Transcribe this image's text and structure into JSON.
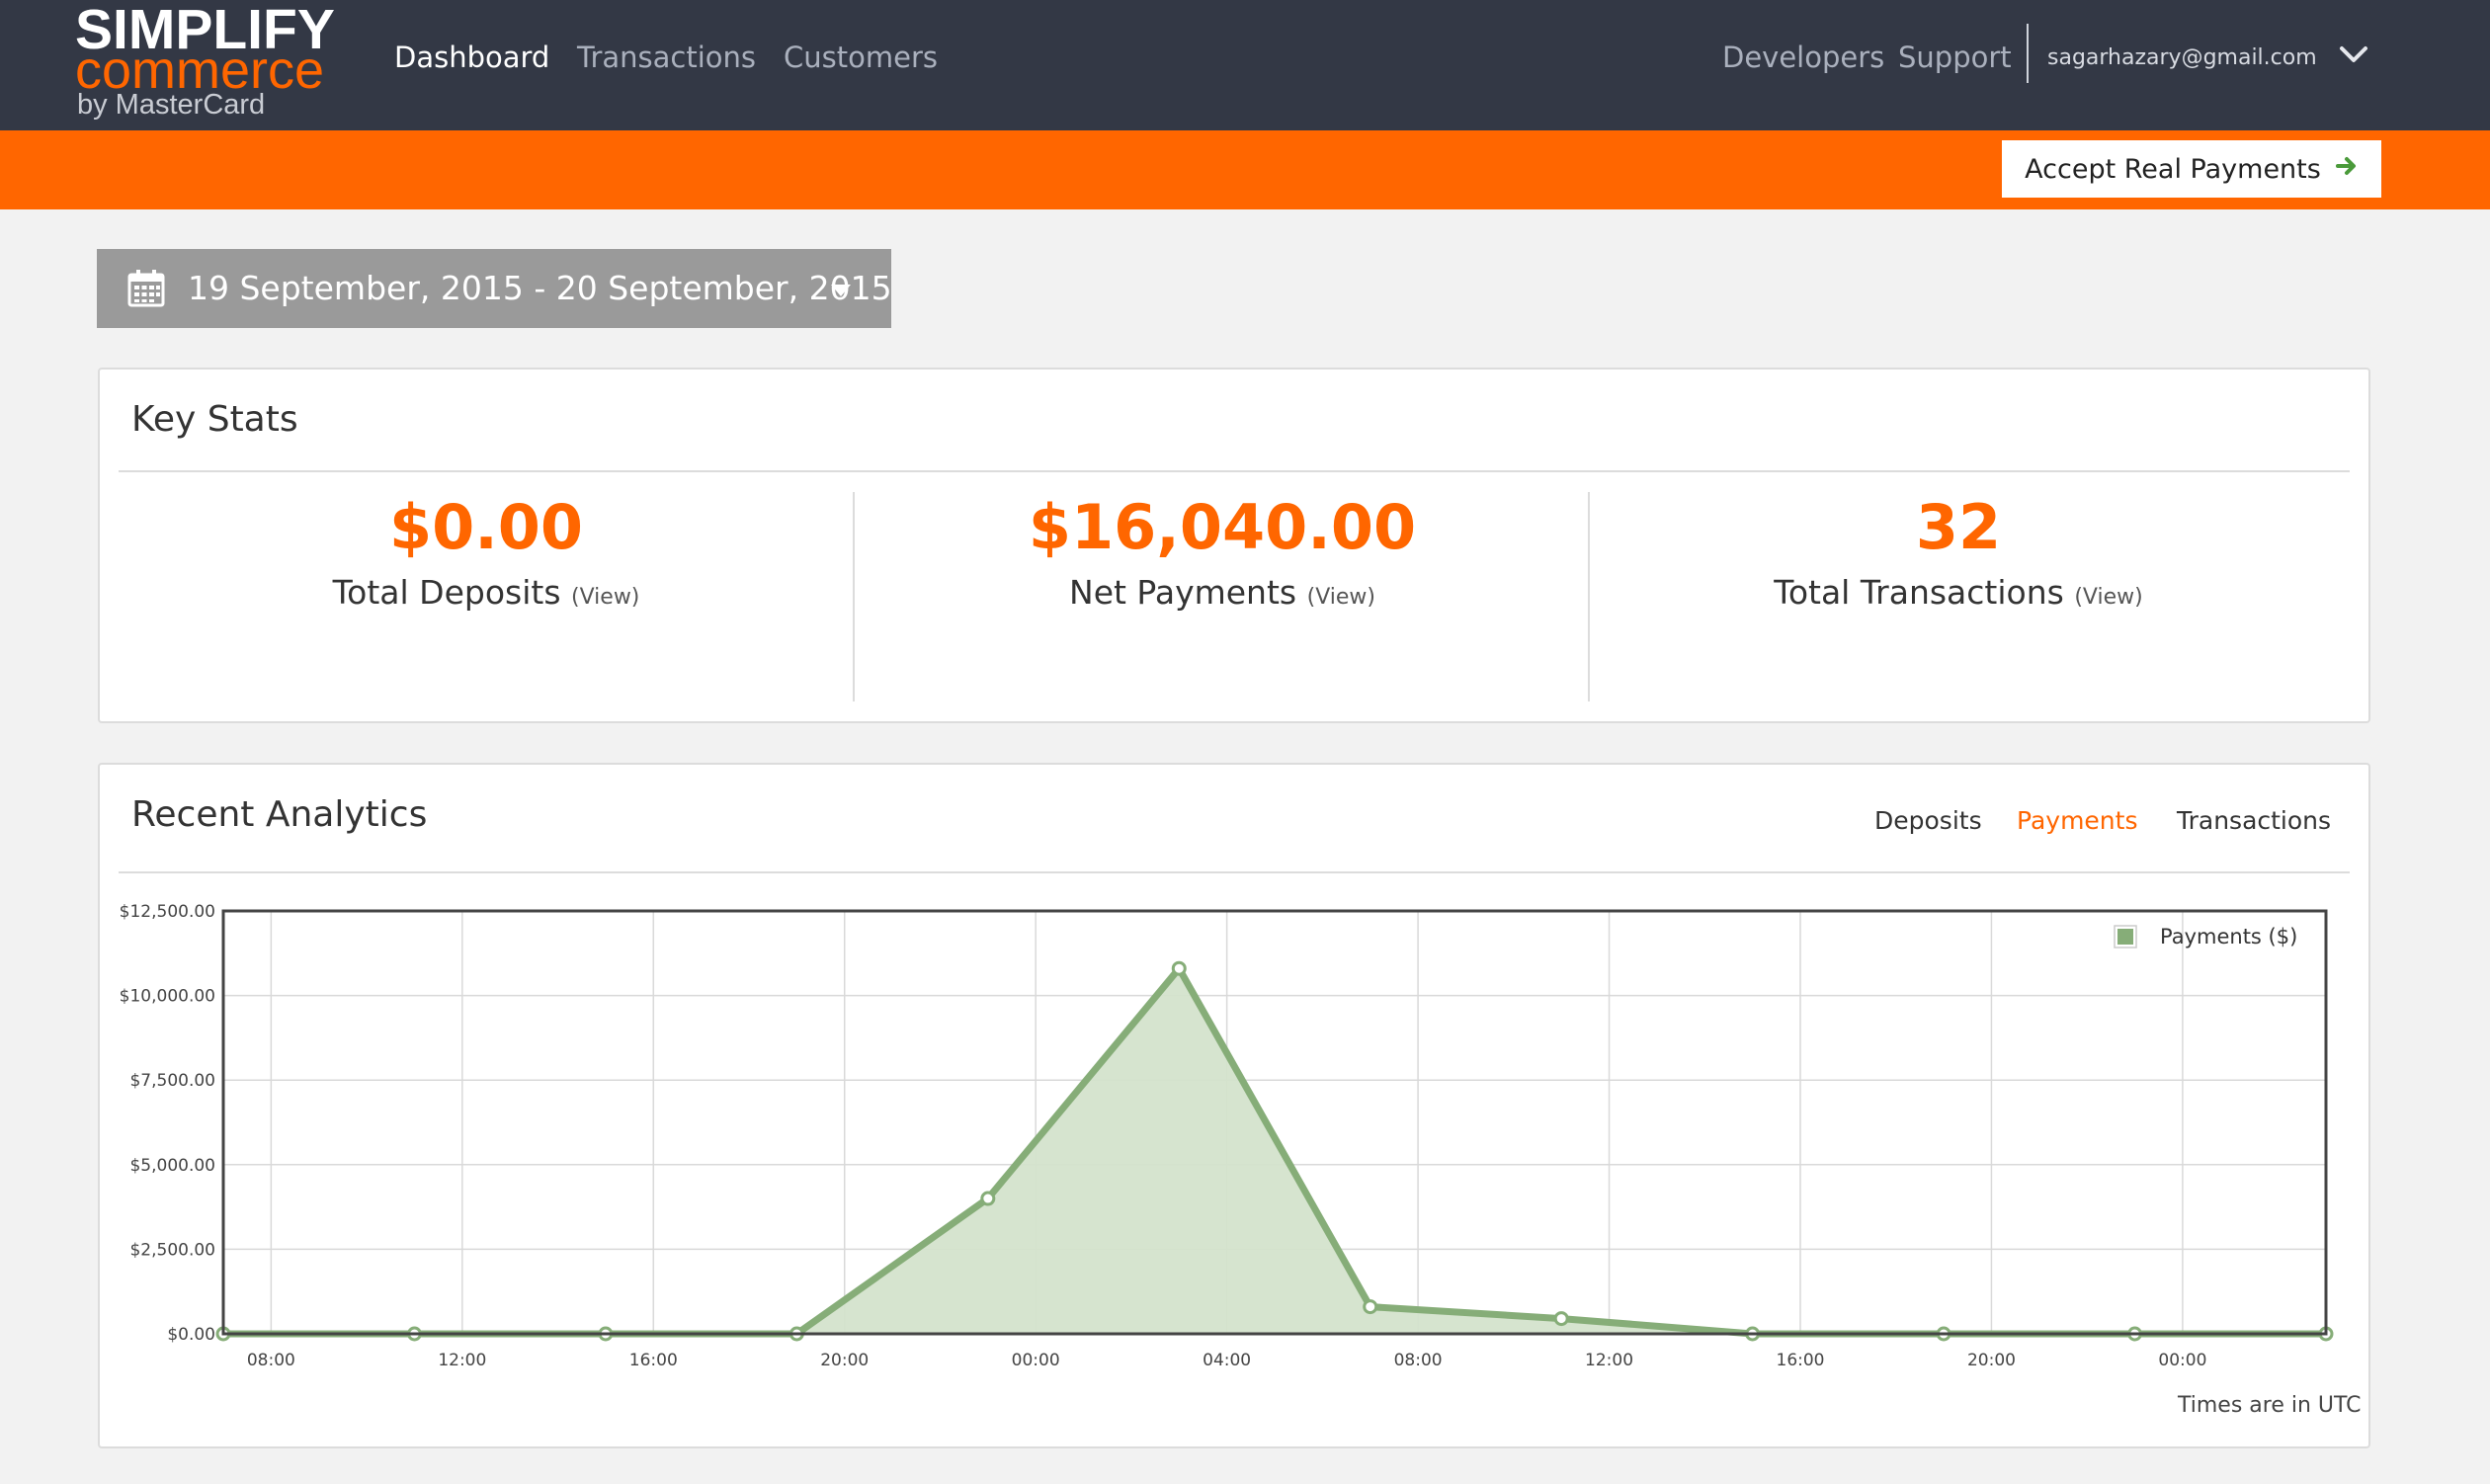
{
  "brand": {
    "line1": "SIMPLIFY",
    "line2": "commerce",
    "line3": "by MasterCard"
  },
  "nav": {
    "dashboard": "Dashboard",
    "transactions": "Transactions",
    "customers": "Customers",
    "developers": "Developers",
    "support": "Support",
    "user_email": "sagarhazary@gmail.com"
  },
  "banner": {
    "accept_label": "Accept Real Payments"
  },
  "date_range": {
    "label": "19 September, 2015 - 20 September, 2015"
  },
  "key_stats": {
    "title": "Key Stats",
    "items": [
      {
        "value": "$0.00",
        "label": "Total Deposits",
        "view": "(View)"
      },
      {
        "value": "$16,040.00",
        "label": "Net Payments",
        "view": "(View)"
      },
      {
        "value": "32",
        "label": "Total Transactions",
        "view": "(View)"
      }
    ]
  },
  "analytics": {
    "title": "Recent Analytics",
    "tabs": [
      "Deposits",
      "Payments",
      "Transactions"
    ],
    "active_tab": "Payments",
    "footnote": "Times are in UTC"
  },
  "colors": {
    "accent": "#ff6600",
    "nav_bg": "#333845",
    "series_line": "#86ad78",
    "series_fill": "#d4e3cc"
  },
  "chart_data": {
    "type": "area",
    "legend": "Payments ($)",
    "legend_position": "top-right",
    "grid": true,
    "ylim": [
      0,
      12500
    ],
    "y_ticks": [
      0,
      2500,
      5000,
      7500,
      10000,
      12500
    ],
    "y_tick_labels": [
      "$0.00",
      "$2,500.00",
      "$5,000.00",
      "$7,500.00",
      "$10,000.00",
      "$12,500.00"
    ],
    "x_tick_labels": [
      "08:00",
      "12:00",
      "16:00",
      "20:00",
      "00:00",
      "04:00",
      "08:00",
      "12:00",
      "16:00",
      "20:00",
      "00:00"
    ],
    "x_start_hour": 7,
    "x_end_hour": 51,
    "series": [
      {
        "name": "Payments ($)",
        "x": [
          "07:00",
          "11:00",
          "15:00",
          "19:00",
          "23:00",
          "03:00",
          "07:00",
          "11:00",
          "15:00",
          "19:00",
          "23:00",
          "03:00"
        ],
        "values": [
          0,
          0,
          0,
          0,
          4000,
          10800,
          800,
          450,
          0,
          0,
          0,
          0
        ]
      }
    ]
  }
}
